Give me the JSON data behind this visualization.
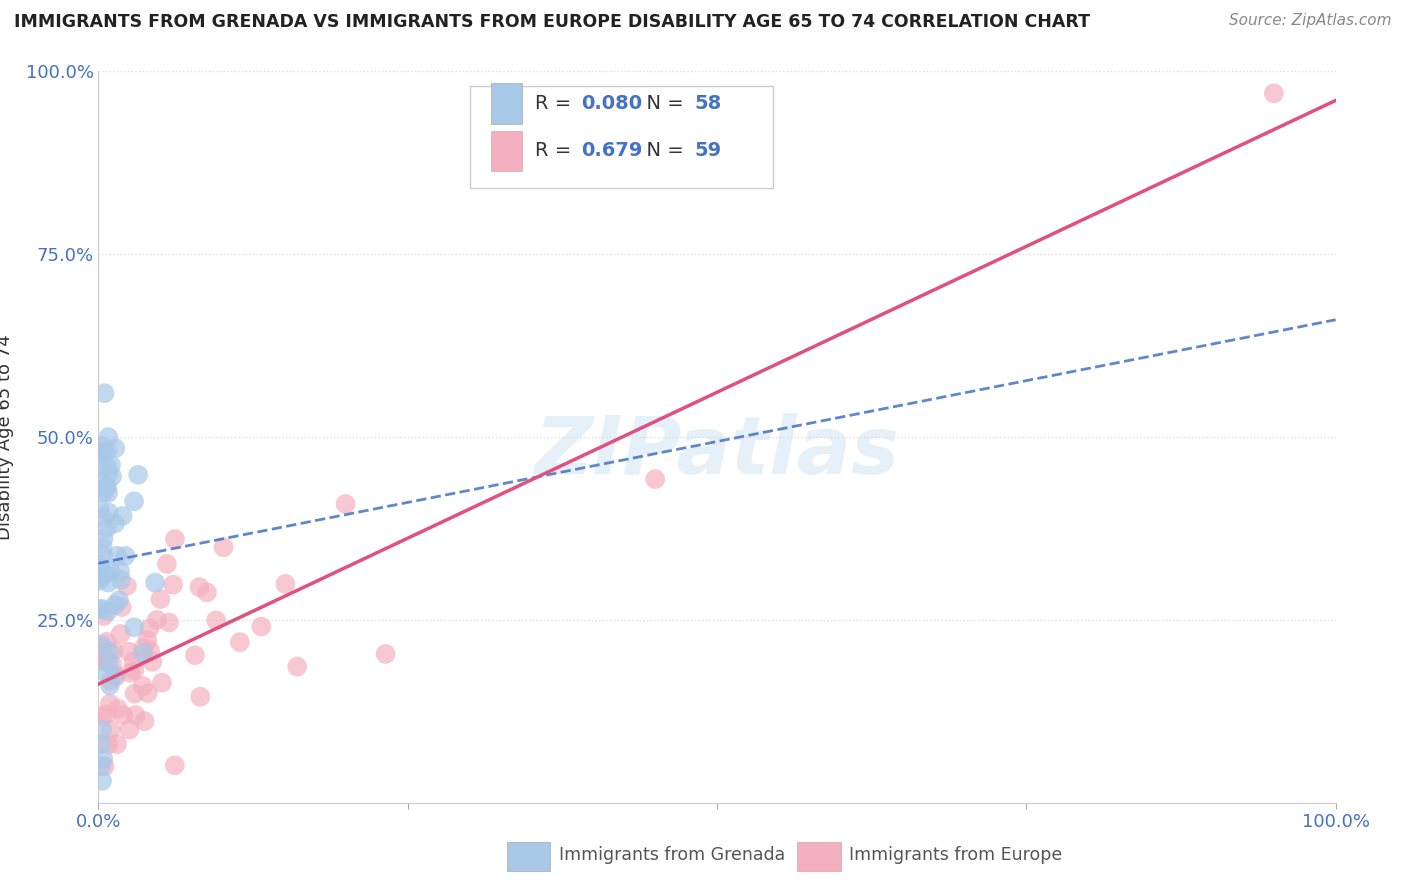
{
  "title": "IMMIGRANTS FROM GRENADA VS IMMIGRANTS FROM EUROPE DISABILITY AGE 65 TO 74 CORRELATION CHART",
  "source": "Source: ZipAtlas.com",
  "ylabel": "Disability Age 65 to 74",
  "watermark": "ZIPatlas",
  "xlim": [
    0.0,
    1.0
  ],
  "ylim": [
    0.0,
    1.0
  ],
  "xticks": [
    0.0,
    0.25,
    0.5,
    0.75,
    1.0
  ],
  "xticklabels": [
    "0.0%",
    "",
    "",
    "",
    "100.0%"
  ],
  "yticks": [
    0.0,
    0.25,
    0.5,
    0.75,
    1.0
  ],
  "yticklabels": [
    "",
    "25.0%",
    "50.0%",
    "75.0%",
    "100.0%"
  ],
  "series1_name": "Immigrants from Grenada",
  "series1_R": 0.08,
  "series1_N": 58,
  "series1_color": "#a8c8e8",
  "series1_line_color": "#4472c4",
  "series2_name": "Immigrants from Europe",
  "series2_R": 0.679,
  "series2_N": 59,
  "series2_color": "#f4b0c0",
  "series2_line_color": "#e05080",
  "background_color": "#ffffff",
  "grid_color": "#dddddd",
  "title_color": "#222222"
}
